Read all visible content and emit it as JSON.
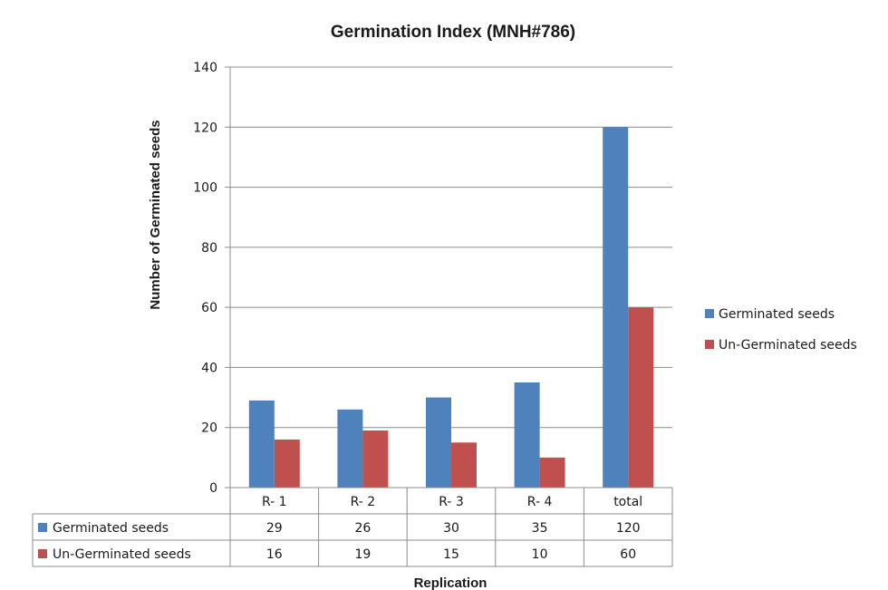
{
  "chart_data": {
    "type": "bar",
    "title": "Germination Index (MNH#786)",
    "xlabel": "Replication",
    "ylabel": "Number of Germinated seeds",
    "categories": [
      "R- 1",
      "R- 2",
      "R- 3",
      "R- 4",
      "total"
    ],
    "series": [
      {
        "name": "Germinated seeds",
        "values": [
          29,
          26,
          30,
          35,
          120
        ],
        "color": "#4f81bd"
      },
      {
        "name": "Un-Germinated seeds",
        "values": [
          16,
          19,
          15,
          10,
          60
        ],
        "color": "#c0504d"
      }
    ],
    "ylim": [
      0,
      140
    ],
    "yticks": [
      0,
      20,
      40,
      60,
      80,
      100,
      120,
      140
    ],
    "grid": true,
    "legend_position": "right",
    "data_table": true
  }
}
